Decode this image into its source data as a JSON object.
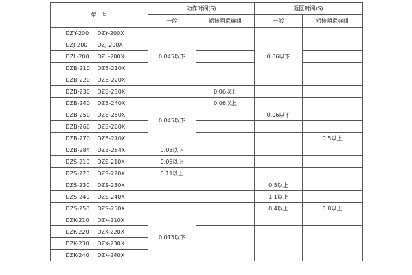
{
  "header": {
    "model": "型　号",
    "action_time": "动作时间(S)",
    "return_time": "返回时间(S)",
    "general": "一般",
    "short_winding": "短接阻尼绕组"
  },
  "table": {
    "rows": [
      {
        "model": "DZY-200",
        "model_x": "DZY-200X",
        "cells": [
          {
            "text": "0.045以下",
            "rowspan": 5
          },
          {
            "text": ""
          },
          {
            "text": "0.06以下",
            "rowspan": 5
          },
          {
            "text": ""
          }
        ]
      },
      {
        "model": "DZJ-200",
        "model_x": "DZJ-200X",
        "cells": [
          {
            "text": ""
          },
          {
            "text": ""
          }
        ]
      },
      {
        "model": "DZL-200",
        "model_x": "DZL-200X",
        "cells": [
          {
            "text": ""
          },
          {
            "text": ""
          }
        ]
      },
      {
        "model": "DZB-210",
        "model_x": "DZB-210X",
        "cells": [
          {
            "text": ""
          },
          {
            "text": ""
          }
        ]
      },
      {
        "model": "DZB-220",
        "model_x": "DZB-220X",
        "cells": [
          {
            "text": ""
          },
          {
            "text": ""
          }
        ]
      },
      {
        "model": "DZB-230",
        "model_x": "DZB-230X",
        "cells": [
          {
            "text": ""
          },
          {
            "text": "0.06以上"
          },
          {
            "text": ""
          },
          {
            "text": ""
          }
        ]
      },
      {
        "model": "DZB-240",
        "model_x": "DZB-240X",
        "cells": [
          {
            "text": "0.045以下",
            "rowspan": 4
          },
          {
            "text": "0.06以上"
          },
          {
            "text": ""
          },
          {
            "text": ""
          }
        ]
      },
      {
        "model": "DZB-250",
        "model_x": "DZB-250X",
        "cells": [
          {
            "text": ""
          },
          {
            "text": "0.06以下"
          },
          {
            "text": ""
          }
        ]
      },
      {
        "model": "DZB-260",
        "model_x": "DZB-260X",
        "cells": [
          {
            "text": ""
          },
          {
            "text": ""
          },
          {
            "text": ""
          }
        ]
      },
      {
        "model": "DZB-270",
        "model_x": "DZB-270X",
        "cells": [
          {
            "text": ""
          },
          {
            "text": ""
          },
          {
            "text": "0.5以上"
          }
        ]
      },
      {
        "model": "DZB-284",
        "model_x": "DZB-284X",
        "cells": [
          {
            "text": "0.03以下"
          },
          {
            "text": ""
          },
          {
            "text": ""
          },
          {
            "text": ""
          }
        ]
      },
      {
        "model": "DZS-210",
        "model_x": "DZS-210X",
        "cells": [
          {
            "text": "0.06以上"
          },
          {
            "text": ""
          },
          {
            "text": ""
          },
          {
            "text": ""
          }
        ]
      },
      {
        "model": "DZS-220",
        "model_x": "DZS-220X",
        "cells": [
          {
            "text": "0.11以上"
          },
          {
            "text": ""
          },
          {
            "text": ""
          },
          {
            "text": ""
          }
        ]
      },
      {
        "model": "DZS-230",
        "model_x": "DZS-230X",
        "cells": [
          {
            "text": ""
          },
          {
            "text": ""
          },
          {
            "text": "0.5以上"
          },
          {
            "text": ""
          }
        ]
      },
      {
        "model": "DZS-240",
        "model_x": "DZS-240X",
        "cells": [
          {
            "text": ""
          },
          {
            "text": ""
          },
          {
            "text": "1.1以上"
          },
          {
            "text": ""
          }
        ]
      },
      {
        "model": "DZS-250",
        "model_x": "DZS-250X",
        "cells": [
          {
            "text": ""
          },
          {
            "text": ""
          },
          {
            "text": "0.4以上"
          },
          {
            "text": "0.8以上"
          }
        ]
      },
      {
        "model": "DZK-210",
        "model_x": "DZK-210X",
        "cells": [
          {
            "text": "0.015以下",
            "rowspan": 4
          },
          {
            "text": ""
          },
          {
            "text": ""
          },
          {
            "text": ""
          }
        ]
      },
      {
        "model": "DZK-220",
        "model_x": "DZK-220X",
        "cells": [
          {
            "text": "",
            "rowspan": 3
          },
          {
            "text": "",
            "rowspan": 3
          },
          {
            "text": "",
            "rowspan": 3
          }
        ]
      },
      {
        "model": "DZK-230",
        "model_x": "DZK-230X",
        "cells": []
      },
      {
        "model": "DZK-240",
        "model_x": "DZK-240X",
        "cells": []
      }
    ]
  }
}
